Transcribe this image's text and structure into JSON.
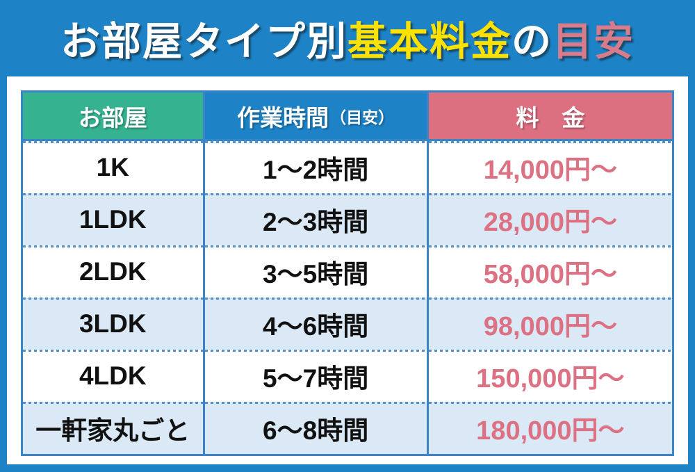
{
  "title": {
    "full": "お部屋タイプ別基本料金の目安",
    "segments": [
      {
        "text": "お部屋タイプ別",
        "color": "#ffffff"
      },
      {
        "text": "基本料金",
        "color": "#fde100"
      },
      {
        "text": "の",
        "color": "#ffffff"
      },
      {
        "text": "目安",
        "color": "#d87b8a"
      }
    ]
  },
  "table": {
    "headers": {
      "room": {
        "label": "お部屋",
        "bg": "#35b391"
      },
      "hours": {
        "label": "作業時間",
        "note": "（目安）",
        "bg": "#1d83c6"
      },
      "price": {
        "label": "料　金",
        "bg": "#dd7080"
      }
    },
    "rows": [
      {
        "room": "1K",
        "hours": "1〜2時間",
        "price": "14,000円〜"
      },
      {
        "room": "1LDK",
        "hours": "2〜3時間",
        "price": "28,000円〜"
      },
      {
        "room": "2LDK",
        "hours": "3〜5時間",
        "price": "58,000円〜"
      },
      {
        "room": "3LDK",
        "hours": "4〜6時間",
        "price": "98,000円〜"
      },
      {
        "room": "4LDK",
        "hours": "5〜7時間",
        "price": "150,000円〜"
      },
      {
        "room": "一軒家丸ごと",
        "hours": "6〜8時間",
        "price": "180,000円〜"
      }
    ]
  },
  "chart_data": {
    "type": "table",
    "title": "お部屋タイプ別基本料金の目安",
    "columns": [
      "お部屋",
      "作業時間（目安）",
      "料金"
    ],
    "rows": [
      [
        "1K",
        "1〜2時間",
        "14,000円〜"
      ],
      [
        "1LDK",
        "2〜3時間",
        "28,000円〜"
      ],
      [
        "2LDK",
        "3〜5時間",
        "58,000円〜"
      ],
      [
        "3LDK",
        "4〜6時間",
        "98,000円〜"
      ],
      [
        "4LDK",
        "5〜7時間",
        "150,000円〜"
      ],
      [
        "一軒家丸ごと",
        "6〜8時間",
        "180,000円〜"
      ]
    ],
    "prices_yen_min": [
      14000,
      28000,
      58000,
      98000,
      150000,
      180000
    ],
    "hours_range": [
      [
        1,
        2
      ],
      [
        2,
        3
      ],
      [
        3,
        5
      ],
      [
        4,
        6
      ],
      [
        5,
        7
      ],
      [
        6,
        8
      ]
    ]
  },
  "colors": {
    "background_blue": "#1d83c6",
    "panel_white": "#ffffff",
    "row_alt_blue": "#dbe9f6",
    "grid_border_blue": "#3c84c6",
    "dotted_separator_blue": "#4f90cb",
    "header_green": "#35b391",
    "header_blue": "#1d83c6",
    "header_pink": "#dd7080",
    "price_pink": "#dc7183",
    "title_yellow": "#fde100",
    "title_pink": "#d87b8a",
    "title_white": "#ffffff"
  }
}
